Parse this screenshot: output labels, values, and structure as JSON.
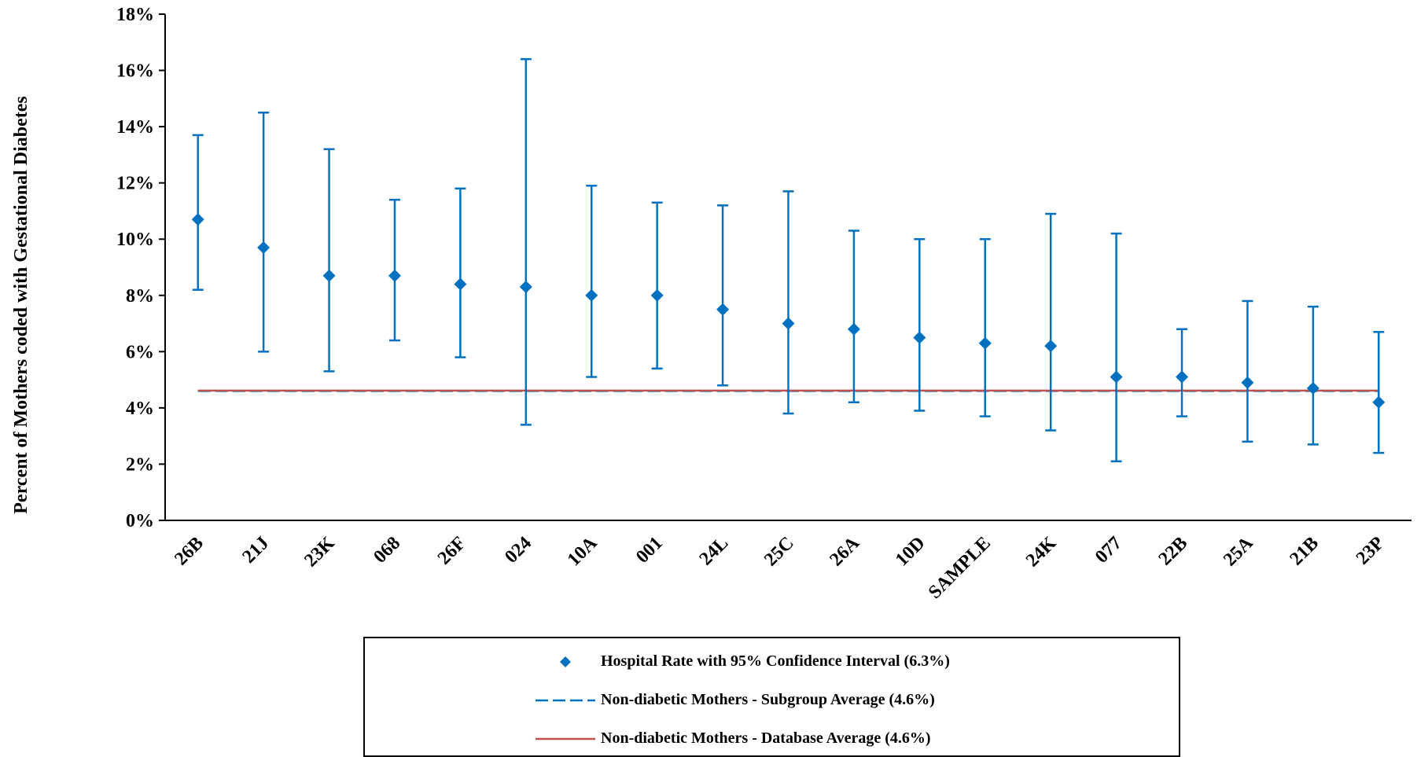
{
  "chart_data": {
    "type": "scatter",
    "title": "",
    "ylabel": "Percent of Mothers coded with Gestational Diabetes",
    "xlabel": "",
    "ylim": [
      0,
      18
    ],
    "ytick_step": 2,
    "y_unit": "%",
    "yticks": [
      "0%",
      "2%",
      "4%",
      "6%",
      "8%",
      "10%",
      "12%",
      "14%",
      "16%",
      "18%"
    ],
    "categories": [
      "26B",
      "21J",
      "23K",
      "068",
      "26F",
      "024",
      "10A",
      "001",
      "24L",
      "25C",
      "26A",
      "10D",
      "SAMPLE",
      "24K",
      "077",
      "22B",
      "25A",
      "21B",
      "23P"
    ],
    "series": [
      {
        "name": "Hospital Rate with 95% Confidence Interval (6.3%)",
        "marker": "diamond",
        "color": "#0070C0",
        "values": [
          10.7,
          9.7,
          8.7,
          8.7,
          8.4,
          8.3,
          8.0,
          8.0,
          7.5,
          7.0,
          6.8,
          6.5,
          6.3,
          6.2,
          5.1,
          5.1,
          4.9,
          4.7,
          4.2
        ],
        "ci_lower": [
          8.2,
          6.0,
          5.3,
          6.4,
          5.8,
          3.4,
          5.1,
          5.4,
          4.8,
          3.8,
          4.2,
          3.9,
          3.7,
          3.2,
          2.1,
          3.7,
          2.8,
          2.7,
          2.4
        ],
        "ci_upper": [
          13.7,
          14.5,
          13.2,
          11.4,
          11.8,
          16.4,
          11.9,
          11.3,
          11.2,
          11.7,
          10.3,
          10.0,
          10.0,
          10.9,
          10.2,
          6.8,
          7.8,
          7.6,
          6.7
        ]
      },
      {
        "name": "Non-diabetic Mothers - Subgroup Average (4.6%)",
        "type": "line",
        "style": "dashed",
        "color": "#0070C0",
        "value": 4.6
      },
      {
        "name": "Non-diabetic Mothers - Database Average (4.6%)",
        "type": "line",
        "style": "solid",
        "color": "#C0504D",
        "value": 4.6
      }
    ],
    "legend_position": "bottom",
    "grid": false
  }
}
